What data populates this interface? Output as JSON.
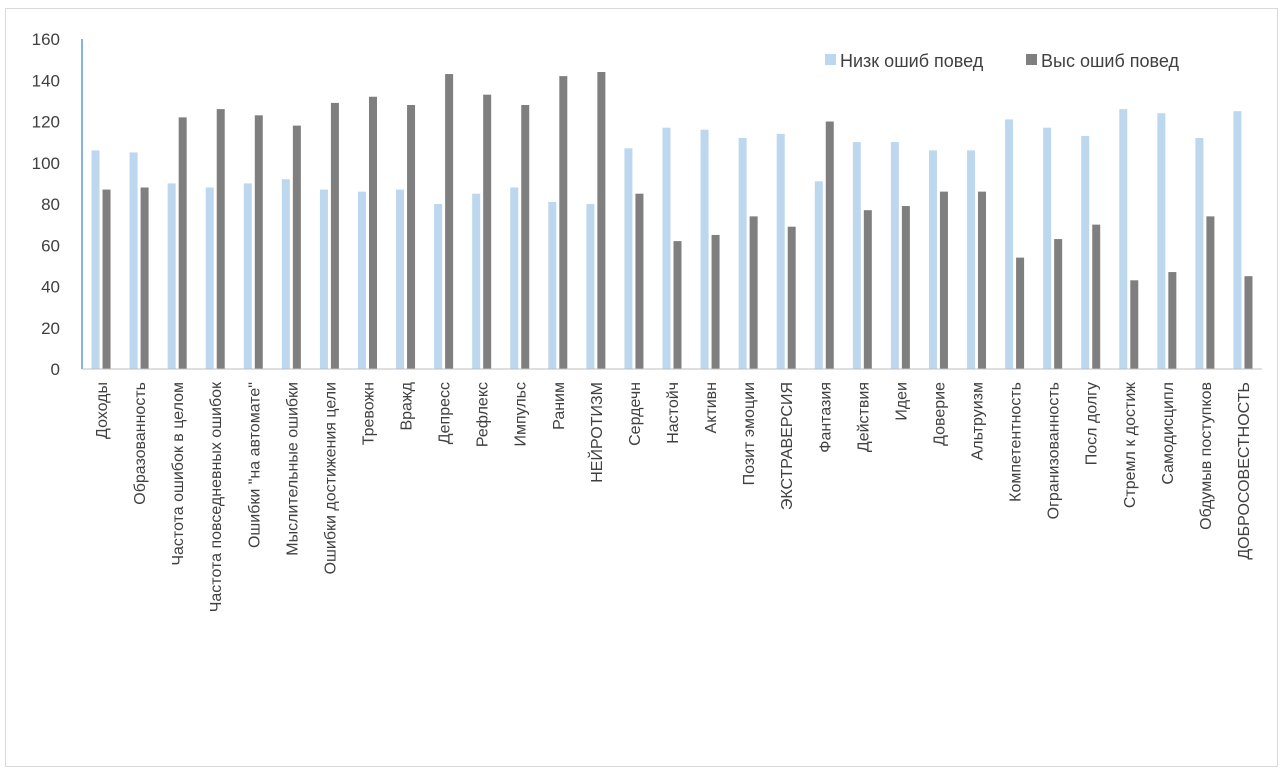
{
  "chart_data": {
    "type": "bar",
    "categories": [
      "Доходы",
      "Образованность",
      "Частота ошибок в целом",
      "Частота повседневных ошибок",
      "Ошибки \"на автомате\"",
      "Мыслительные ошибки",
      "Ошибки достижения цели",
      "Тревожн",
      "Вражд",
      "Депресс",
      "Рефлекс",
      "Импульс",
      "Раним",
      "НЕЙРОТИЗМ",
      "Сердечн",
      "Настойч",
      "Активн",
      "Позит эмоции",
      "ЭКСТРАВЕРСИЯ",
      "Фантазия",
      "Действия",
      "Идеи",
      "Доверие",
      "Альтруизм",
      "Компетентность",
      "Огранизованность",
      "Посл долгу",
      "Стремл к достиж",
      "Самодисципл",
      "Обдумыв поступков",
      "ДОБРОСОВЕСТНОСТЬ"
    ],
    "series": [
      {
        "name": "Низк ошиб повед",
        "color": "#bdd7ee",
        "values": [
          106,
          105,
          90,
          88,
          90,
          92,
          87,
          86,
          87,
          80,
          85,
          88,
          81,
          80,
          107,
          117,
          116,
          112,
          114,
          91,
          110,
          110,
          106,
          106,
          121,
          117,
          113,
          126,
          124,
          112,
          125
        ]
      },
      {
        "name": "Выс ошиб повед",
        "color": "#7f7f7f",
        "values": [
          87,
          88,
          122,
          126,
          123,
          118,
          129,
          132,
          128,
          143,
          133,
          128,
          142,
          144,
          85,
          62,
          65,
          74,
          69,
          120,
          77,
          79,
          86,
          86,
          54,
          63,
          70,
          43,
          47,
          74,
          45
        ]
      }
    ],
    "ylim": [
      0,
      160
    ],
    "yticks": [
      "0",
      "20",
      "40",
      "60",
      "80",
      "100",
      "120",
      "140",
      "160"
    ],
    "legend_position": "top-right",
    "grid": false
  }
}
